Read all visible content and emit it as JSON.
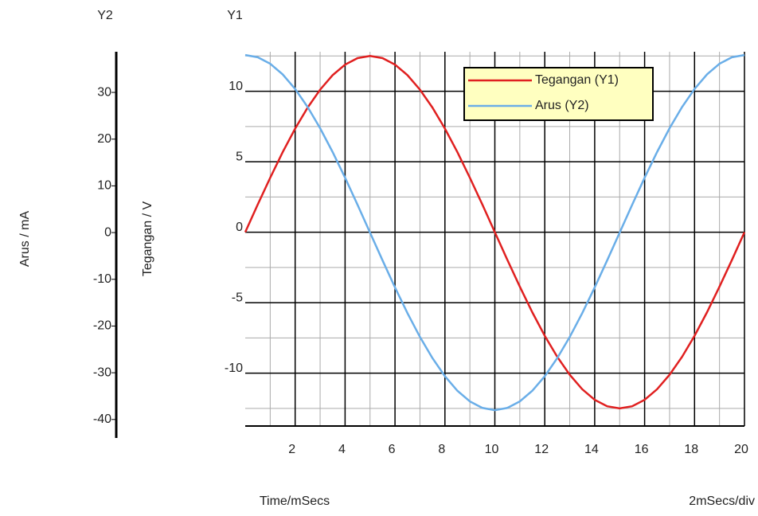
{
  "chart_data": {
    "type": "line",
    "axis_titles": {
      "y2_header": "Y2",
      "y1_header": "Y1",
      "y2": "Arus / mA",
      "y1": "Tegangan / V",
      "x": "Time/mSecs",
      "x_scale": "2mSecs/div"
    },
    "x": [
      0,
      0.5,
      1,
      1.5,
      2,
      2.5,
      3,
      3.5,
      4,
      4.5,
      5,
      5.5,
      6,
      6.5,
      7,
      7.5,
      8,
      8.5,
      9,
      9.5,
      10,
      10.5,
      11,
      11.5,
      12,
      12.5,
      13,
      13.5,
      14,
      14.5,
      15,
      15.5,
      16,
      16.5,
      17,
      17.5,
      18,
      18.5,
      19,
      19.5,
      20
    ],
    "series": [
      {
        "name": "Tegangan (Y1)",
        "color": "#e02020",
        "values": [
          0,
          1.96,
          3.86,
          5.68,
          7.35,
          8.84,
          10.11,
          11.14,
          11.89,
          12.35,
          12.5,
          12.35,
          11.89,
          11.14,
          10.11,
          8.84,
          7.35,
          5.68,
          3.86,
          1.96,
          0,
          -1.96,
          -3.86,
          -5.68,
          -7.35,
          -8.84,
          -10.11,
          -11.14,
          -11.89,
          -12.35,
          -12.5,
          -12.35,
          -11.89,
          -11.14,
          -10.11,
          -8.84,
          -7.35,
          -5.68,
          -3.86,
          -1.96,
          0
        ]
      },
      {
        "name": "Arus (Y2)",
        "color": "#6aaee8",
        "axis": "y2",
        "values": [
          38,
          37.53,
          36.14,
          33.86,
          30.74,
          26.87,
          22.34,
          17.25,
          11.74,
          5.94,
          0,
          -5.94,
          -11.74,
          -17.25,
          -22.34,
          -26.87,
          -30.74,
          -33.86,
          -36.14,
          -37.53,
          -38,
          -37.53,
          -36.14,
          -33.86,
          -30.74,
          -26.87,
          -22.34,
          -17.25,
          -11.74,
          -5.94,
          0,
          5.94,
          11.74,
          17.25,
          22.34,
          26.87,
          30.74,
          33.86,
          36.14,
          37.53,
          38
        ]
      }
    ],
    "xlim": [
      0,
      20
    ],
    "xticks": [
      2,
      4,
      6,
      8,
      10,
      12,
      14,
      16,
      18,
      20
    ],
    "xgrid_minor": [
      1,
      3,
      5,
      7,
      9,
      11,
      13,
      15,
      17,
      19
    ],
    "ylim": [
      -13.75,
      12.8
    ],
    "yticks": [
      -10,
      -5,
      0,
      5,
      10
    ],
    "ygrid_minor": [
      -12.5,
      -7.5,
      -2.5,
      2.5,
      7.5,
      12.5
    ],
    "y2lim": [
      -41.4,
      38.7
    ],
    "y2ticks": [
      30,
      20,
      10,
      0,
      -10,
      -20,
      -30,
      -40
    ],
    "grid": true,
    "legend": "top-right"
  }
}
